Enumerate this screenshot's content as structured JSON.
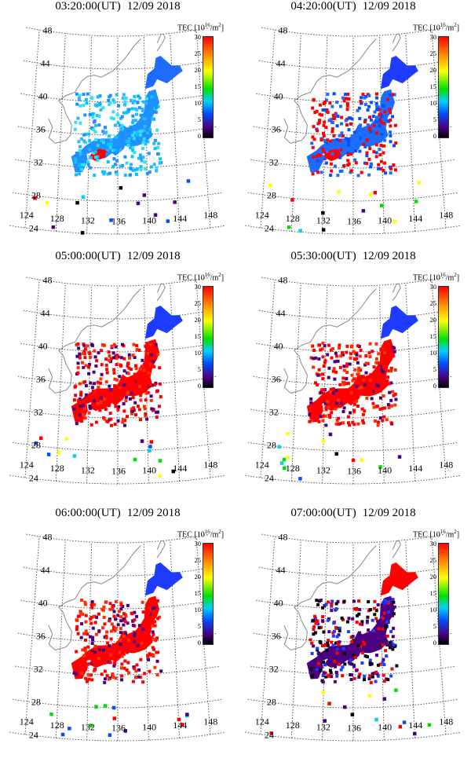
{
  "colorbar": {
    "label_prefix": "TEC [10",
    "label_exp": "16",
    "label_suffix": "/m",
    "label_sq": "2",
    "label_close": "]",
    "ticks": [
      "30",
      "25",
      "20",
      "15",
      "10",
      "5",
      "0"
    ],
    "colors": [
      "#ff0000",
      "#ffff00",
      "#00e000",
      "#00d0ff",
      "#0050ff",
      "#4b0082",
      "#000000"
    ]
  },
  "axes": {
    "latitudes": [
      "48",
      "44",
      "40",
      "36",
      "32",
      "28",
      "24"
    ],
    "longitudes": [
      "124",
      "128",
      "132",
      "136",
      "140",
      "144",
      "148"
    ]
  },
  "panels": [
    {
      "time": "03:20:00(UT)",
      "date": "12/09 2018",
      "tec_level": "low"
    },
    {
      "time": "04:20:00(UT)",
      "date": "12/09 2018",
      "tec_level": "rising"
    },
    {
      "time": "05:00:00(UT)",
      "date": "12/09 2018",
      "tec_level": "high"
    },
    {
      "time": "05:30:00(UT)",
      "date": "12/09 2018",
      "tec_level": "high"
    },
    {
      "time": "06:00:00(UT)",
      "date": "12/09 2018",
      "tec_level": "high"
    },
    {
      "time": "07:00:00(UT)",
      "date": "12/09 2018",
      "tec_level": "decay"
    }
  ]
}
